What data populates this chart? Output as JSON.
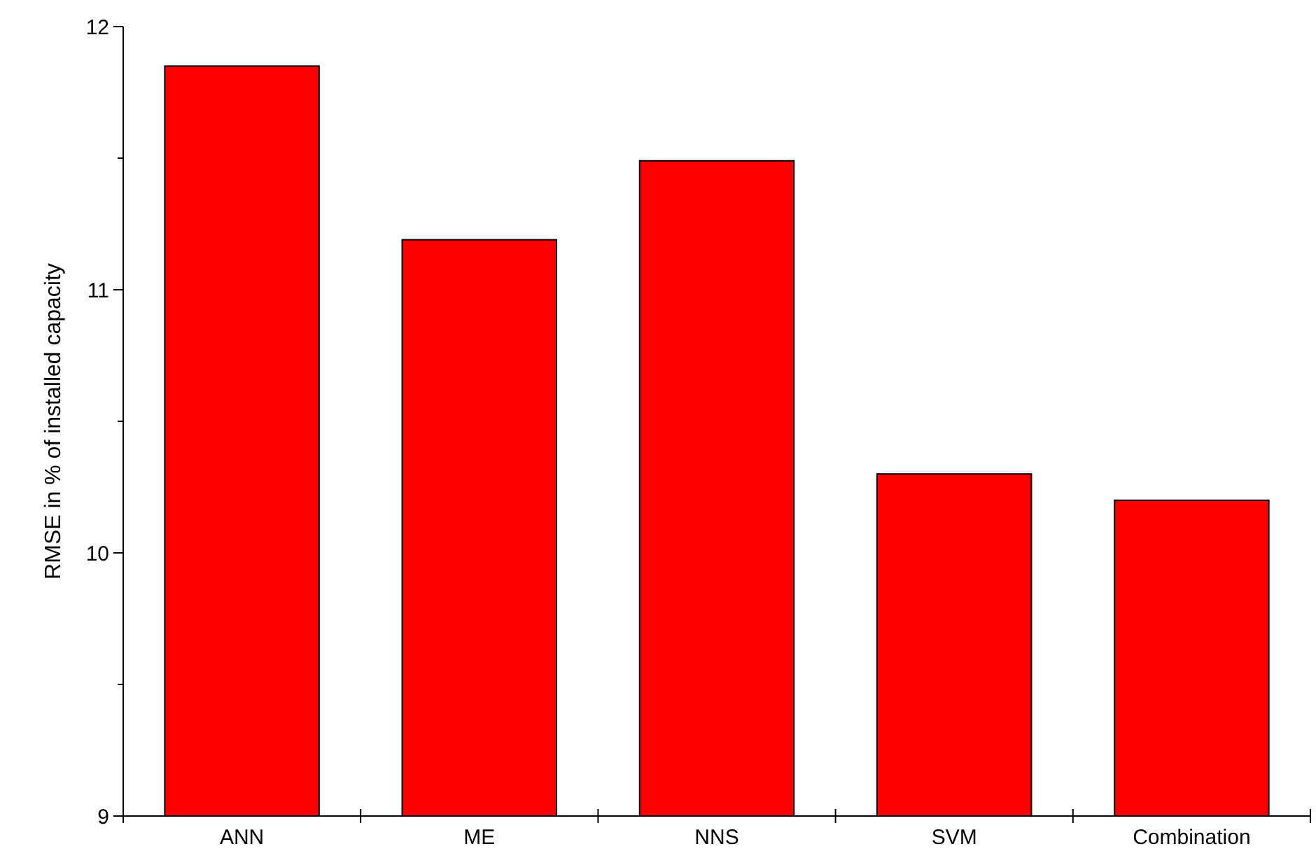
{
  "chart_data": {
    "type": "bar",
    "ylabel": "RMSE in % of installed capacity",
    "categories": [
      "ANN",
      "ME",
      "NNS",
      "SVM",
      "Combination"
    ],
    "values": [
      11.85,
      11.19,
      11.49,
      10.3,
      10.2
    ],
    "color": "#ff0000",
    "ylim": [
      9,
      12
    ],
    "yticks": [
      9,
      {
        "value": 9.5,
        "label": null
      },
      10,
      {
        "value": 10.5,
        "label": null
      },
      11,
      {
        "value": 11.5,
        "label": null
      },
      12
    ],
    "grid": false
  }
}
